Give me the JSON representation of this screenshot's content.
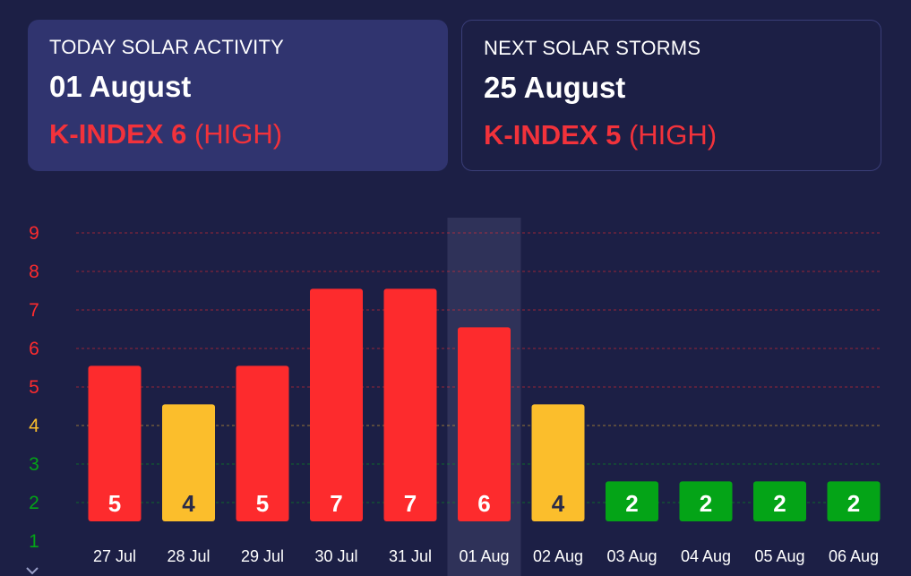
{
  "today_card": {
    "label": "TODAY SOLAR ACTIVITY",
    "date": "01 August",
    "kindex_label": "K-INDEX 6",
    "kindex_level": "(HIGH)"
  },
  "next_card": {
    "label": "NEXT SOLAR STORMS",
    "date": "25 August",
    "kindex_label": "K-INDEX 5",
    "kindex_level": "(HIGH)"
  },
  "colors": {
    "high": "#fd2b2d",
    "moderate": "#fbbe2c",
    "low": "#04a417",
    "background": "#1c1f45",
    "highlight": "#2f3259"
  },
  "chart_data": {
    "type": "bar",
    "categories": [
      "27 Jul",
      "28 Jul",
      "29 Jul",
      "30 Jul",
      "31 Jul",
      "01 Aug",
      "02 Aug",
      "03 Aug",
      "04 Aug",
      "05 Aug",
      "06 Aug"
    ],
    "values": [
      5,
      4,
      5,
      7,
      7,
      6,
      4,
      2,
      2,
      2,
      2
    ],
    "bar_levels": [
      "high",
      "moderate",
      "high",
      "high",
      "high",
      "high",
      "moderate",
      "low",
      "low",
      "low",
      "low"
    ],
    "highlight_category": "01 Aug",
    "y_ticks": [
      "1",
      "2",
      "3",
      "4",
      "5",
      "6",
      "7",
      "8",
      "9"
    ],
    "ylim": [
      1,
      9
    ],
    "grid": true,
    "title": "",
    "xlabel": "",
    "ylabel": ""
  },
  "icons": {
    "scroll": "chevron-down-icon"
  }
}
